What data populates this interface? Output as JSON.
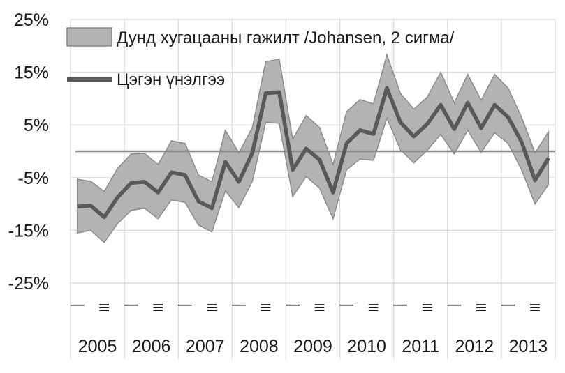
{
  "chart_data": {
    "type": "line",
    "ylim": [
      -25,
      25
    ],
    "y_ticks": [
      "25%",
      "15%",
      "5%",
      "-5%",
      "-15%",
      "-25%"
    ],
    "y_tick_values": [
      25,
      15,
      5,
      -5,
      -15,
      -25
    ],
    "grid": true,
    "legend": "top-left",
    "years": [
      "2005",
      "2006",
      "2007",
      "2008",
      "2009",
      "2010",
      "2011",
      "2012",
      "2013"
    ],
    "quarter_marks": [
      "I",
      "III"
    ],
    "x": [
      "2005Q1",
      "2005Q2",
      "2005Q3",
      "2005Q4",
      "2006Q1",
      "2006Q2",
      "2006Q3",
      "2006Q4",
      "2007Q1",
      "2007Q2",
      "2007Q3",
      "2007Q4",
      "2008Q1",
      "2008Q2",
      "2008Q3",
      "2008Q4",
      "2009Q1",
      "2009Q2",
      "2009Q3",
      "2009Q4",
      "2010Q1",
      "2010Q2",
      "2010Q3",
      "2010Q4",
      "2011Q1",
      "2011Q2",
      "2011Q3",
      "2011Q4",
      "2012Q1",
      "2012Q2",
      "2012Q3",
      "2012Q4",
      "2013Q1",
      "2013Q2",
      "2013Q3",
      "2013Q4"
    ],
    "series": [
      {
        "name": "Дунд хугацааны гажилт /Johansen, 2 сигма/",
        "kind": "band",
        "color": "#b3b3b3",
        "upper": [
          -5.3,
          -5.7,
          -7.6,
          -3.2,
          -0.5,
          -0.4,
          -2.5,
          2.0,
          1.5,
          -4.5,
          -5.8,
          4.0,
          -0.3,
          4.5,
          17.0,
          17.5,
          2.3,
          6.8,
          4.5,
          -2.5,
          7.5,
          9.8,
          9.0,
          18.3,
          11.0,
          8.0,
          10.3,
          15.0,
          9.2,
          14.6,
          9.7,
          14.6,
          12.0,
          6.5,
          -0.3,
          3.7
        ],
        "lower": [
          -15.5,
          -15.0,
          -17.3,
          -13.7,
          -11.2,
          -10.8,
          -12.8,
          -9.2,
          -9.7,
          -14.0,
          -15.3,
          -7.5,
          -10.7,
          -5.7,
          5.5,
          5.3,
          -8.6,
          -4.8,
          -7.0,
          -12.8,
          -3.5,
          -1.5,
          -1.7,
          6.3,
          0.3,
          -2.2,
          0.2,
          3.2,
          -0.5,
          4.0,
          -0.2,
          3.5,
          1.5,
          -3.5,
          -10.0,
          -6.3
        ]
      },
      {
        "name": "Цэгэн үнэлгээ",
        "kind": "line",
        "color": "#595959",
        "values": [
          -10.5,
          -10.3,
          -12.5,
          -8.7,
          -6.0,
          -5.8,
          -7.8,
          -4.0,
          -4.5,
          -9.5,
          -10.8,
          -2.0,
          -5.8,
          -0.3,
          11.0,
          11.2,
          -3.5,
          0.5,
          -1.6,
          -7.8,
          1.5,
          4.0,
          3.3,
          12.0,
          5.5,
          2.8,
          5.2,
          8.8,
          4.2,
          9.2,
          4.4,
          8.8,
          6.5,
          1.8,
          -5.5,
          -1.3
        ]
      }
    ]
  }
}
